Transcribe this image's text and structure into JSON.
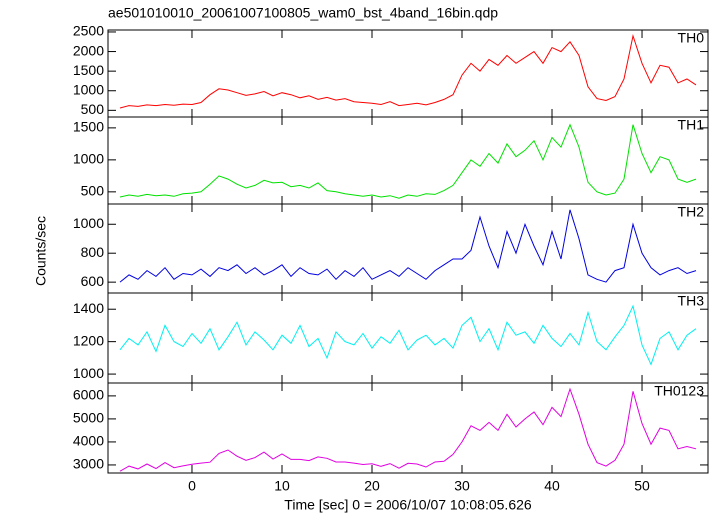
{
  "title": "ae501010010_20061007100805_wam0_bst_4band_16bin.qdp",
  "xlabel": "Time [sec] 0 = 2006/10/07 10:08:05.626",
  "ylabel": "Counts/sec",
  "chart_data": [
    {
      "type": "line",
      "label": "TH0",
      "color": "#ff0000",
      "x": [
        -8,
        -7,
        -6,
        -5,
        -4,
        -3,
        -2,
        -1,
        0,
        1,
        2,
        3,
        4,
        5,
        6,
        7,
        8,
        9,
        10,
        11,
        12,
        13,
        14,
        15,
        16,
        17,
        18,
        19,
        20,
        21,
        22,
        23,
        24,
        25,
        26,
        27,
        28,
        29,
        30,
        31,
        32,
        33,
        34,
        35,
        36,
        37,
        38,
        39,
        40,
        41,
        42,
        43,
        44,
        45,
        46,
        47,
        48,
        49,
        50,
        51,
        52,
        53,
        54,
        55,
        56
      ],
      "values": [
        560,
        620,
        600,
        640,
        620,
        650,
        630,
        660,
        650,
        700,
        900,
        1050,
        1020,
        950,
        880,
        920,
        980,
        870,
        950,
        900,
        820,
        870,
        780,
        830,
        760,
        800,
        720,
        700,
        680,
        650,
        720,
        620,
        650,
        680,
        640,
        700,
        780,
        900,
        1400,
        1700,
        1500,
        1800,
        1650,
        1900,
        1700,
        1850,
        2000,
        1700,
        2100,
        2000,
        2250,
        1900,
        1100,
        800,
        750,
        850,
        1300,
        2400,
        1700,
        1200,
        1650,
        1600,
        1200,
        1300,
        1150
      ],
      "xlim": [
        -9.33,
        57.33
      ],
      "xticks": [
        0,
        10,
        20,
        30,
        40,
        50
      ],
      "ylim": [
        330,
        2550
      ],
      "yticks": [
        500,
        1000,
        1500,
        2000,
        2500
      ]
    },
    {
      "type": "line",
      "label": "TH1",
      "color": "#00e000",
      "x": [
        -8,
        -7,
        -6,
        -5,
        -4,
        -3,
        -2,
        -1,
        0,
        1,
        2,
        3,
        4,
        5,
        6,
        7,
        8,
        9,
        10,
        11,
        12,
        13,
        14,
        15,
        16,
        17,
        18,
        19,
        20,
        21,
        22,
        23,
        24,
        25,
        26,
        27,
        28,
        29,
        30,
        31,
        32,
        33,
        34,
        35,
        36,
        37,
        38,
        39,
        40,
        41,
        42,
        43,
        44,
        45,
        46,
        47,
        48,
        49,
        50,
        51,
        52,
        53,
        54,
        55,
        56
      ],
      "values": [
        420,
        450,
        430,
        460,
        440,
        450,
        430,
        470,
        480,
        500,
        620,
        750,
        700,
        620,
        560,
        600,
        680,
        640,
        650,
        580,
        600,
        560,
        640,
        520,
        500,
        470,
        450,
        430,
        450,
        420,
        440,
        400,
        450,
        430,
        470,
        460,
        520,
        600,
        800,
        1000,
        900,
        1100,
        950,
        1250,
        1050,
        1150,
        1300,
        1000,
        1350,
        1200,
        1550,
        1200,
        650,
        500,
        450,
        480,
        700,
        1550,
        1100,
        800,
        1050,
        1000,
        700,
        650,
        700
      ],
      "xlim": [
        -9.33,
        57.33
      ],
      "xticks": [
        0,
        10,
        20,
        30,
        40,
        50
      ],
      "ylim": [
        310,
        1670
      ],
      "yticks": [
        500,
        1000,
        1500
      ]
    },
    {
      "type": "line",
      "label": "TH2",
      "color": "#0000e0",
      "x": [
        -8,
        -7,
        -6,
        -5,
        -4,
        -3,
        -2,
        -1,
        0,
        1,
        2,
        3,
        4,
        5,
        6,
        7,
        8,
        9,
        10,
        11,
        12,
        13,
        14,
        15,
        16,
        17,
        18,
        19,
        20,
        21,
        22,
        23,
        24,
        25,
        26,
        27,
        28,
        29,
        30,
        31,
        32,
        33,
        34,
        35,
        36,
        37,
        38,
        39,
        40,
        41,
        42,
        43,
        44,
        45,
        46,
        47,
        48,
        49,
        50,
        51,
        52,
        53,
        54,
        55,
        56
      ],
      "values": [
        600,
        650,
        620,
        680,
        640,
        700,
        620,
        660,
        650,
        690,
        640,
        700,
        680,
        720,
        660,
        700,
        650,
        680,
        720,
        640,
        700,
        660,
        650,
        690,
        620,
        680,
        640,
        700,
        620,
        650,
        680,
        640,
        700,
        660,
        620,
        680,
        720,
        760,
        760,
        820,
        1050,
        850,
        700,
        950,
        800,
        1000,
        850,
        720,
        950,
        760,
        1100,
        900,
        650,
        620,
        600,
        680,
        700,
        1000,
        800,
        700,
        650,
        680,
        700,
        660,
        680
      ],
      "xlim": [
        -9.33,
        57.33
      ],
      "xticks": [
        0,
        10,
        20,
        30,
        40,
        50
      ],
      "ylim": [
        525,
        1140
      ],
      "yticks": [
        600,
        800,
        1000
      ]
    },
    {
      "type": "line",
      "label": "TH3",
      "color": "#00f0f0",
      "x": [
        -8,
        -7,
        -6,
        -5,
        -4,
        -3,
        -2,
        -1,
        0,
        1,
        2,
        3,
        4,
        5,
        6,
        7,
        8,
        9,
        10,
        11,
        12,
        13,
        14,
        15,
        16,
        17,
        18,
        19,
        20,
        21,
        22,
        23,
        24,
        25,
        26,
        27,
        28,
        29,
        30,
        31,
        32,
        33,
        34,
        35,
        36,
        37,
        38,
        39,
        40,
        41,
        42,
        43,
        44,
        45,
        46,
        47,
        48,
        49,
        50,
        51,
        52,
        53,
        54,
        55,
        56
      ],
      "values": [
        1150,
        1220,
        1180,
        1260,
        1140,
        1300,
        1200,
        1170,
        1250,
        1190,
        1280,
        1150,
        1230,
        1320,
        1180,
        1260,
        1210,
        1150,
        1240,
        1190,
        1300,
        1170,
        1220,
        1100,
        1260,
        1200,
        1180,
        1250,
        1160,
        1230,
        1190,
        1270,
        1150,
        1210,
        1240,
        1180,
        1220,
        1160,
        1300,
        1350,
        1200,
        1280,
        1150,
        1320,
        1240,
        1260,
        1190,
        1300,
        1220,
        1170,
        1250,
        1180,
        1380,
        1200,
        1150,
        1230,
        1300,
        1420,
        1180,
        1060,
        1220,
        1260,
        1150,
        1240,
        1280
      ],
      "xlim": [
        -9.33,
        57.33
      ],
      "xticks": [
        0,
        10,
        20,
        30,
        40,
        50
      ],
      "ylim": [
        945,
        1500
      ],
      "yticks": [
        1000,
        1200,
        1400
      ]
    },
    {
      "type": "line",
      "label": "TH0123",
      "color": "#e000e0",
      "x": [
        -8,
        -7,
        -6,
        -5,
        -4,
        -3,
        -2,
        -1,
        0,
        1,
        2,
        3,
        4,
        5,
        6,
        7,
        8,
        9,
        10,
        11,
        12,
        13,
        14,
        15,
        16,
        17,
        18,
        19,
        20,
        21,
        22,
        23,
        24,
        25,
        26,
        27,
        28,
        29,
        30,
        31,
        32,
        33,
        34,
        35,
        36,
        37,
        38,
        39,
        40,
        41,
        42,
        43,
        44,
        45,
        46,
        47,
        48,
        49,
        50,
        51,
        52,
        53,
        54,
        55,
        56
      ],
      "values": [
        2730,
        2950,
        2830,
        3040,
        2840,
        3100,
        2880,
        2960,
        3030,
        3080,
        3120,
        3500,
        3650,
        3380,
        3200,
        3320,
        3560,
        3260,
        3480,
        3240,
        3240,
        3190,
        3350,
        3290,
        3130,
        3130,
        3080,
        3020,
        3050,
        2940,
        3060,
        2860,
        3070,
        3040,
        2910,
        3130,
        3160,
        3460,
        4000,
        4700,
        4500,
        4850,
        4500,
        5200,
        4650,
        5000,
        5300,
        4750,
        5500,
        5100,
        6300,
        5200,
        3900,
        3100,
        2950,
        3200,
        3900,
        6200,
        4800,
        3900,
        4600,
        4500,
        3700,
        3800,
        3700
      ],
      "xlim": [
        -9.33,
        57.33
      ],
      "xticks": [
        0,
        10,
        20,
        30,
        40,
        50
      ],
      "ylim": [
        2650,
        6560
      ],
      "yticks": [
        3000,
        4000,
        5000,
        6000
      ]
    }
  ]
}
